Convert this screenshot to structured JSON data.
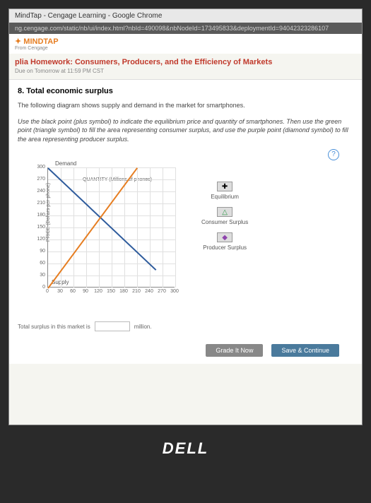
{
  "window": {
    "title": "MindTap - Cengage Learning - Google Chrome"
  },
  "url": "ng.cengage.com/static/nb/ui/index.html?nbId=490098&nbNodeId=173495833&deploymentId=94042323286107",
  "brand": {
    "name": "MINDTAP",
    "sub": "From Cengage"
  },
  "homework": {
    "title": "plia Homework: Consumers, Producers, and the Efficiency of Markets",
    "due": "Due on Tomorrow at 11:59 PM CST"
  },
  "question": {
    "number": "8. Total economic surplus",
    "intro": "The following diagram shows supply and demand in the market for smartphones.",
    "instructions": "Use the black point (plus symbol) to indicate the equilibrium price and quantity of smartphones. Then use the green point (triangle symbol) to fill the area representing consumer surplus, and use the purple point (diamond symbol) to fill the area representing producer surplus."
  },
  "chart": {
    "demand_label": "Demand",
    "supply_label": "Supply",
    "ylabel": "PRICE (Dollars per phone)",
    "xlabel": "QUANTITY (Millions of phones)",
    "yticks": [
      "0",
      "30",
      "60",
      "90",
      "120",
      "150",
      "180",
      "210",
      "240",
      "270",
      "300"
    ],
    "xticks": [
      "0",
      "30",
      "60",
      "90",
      "120",
      "150",
      "180",
      "210",
      "240",
      "270",
      "300"
    ],
    "demand_color": "#2e5b9c",
    "supply_color": "#e67e22",
    "grid_color": "#e0e0e0"
  },
  "legend": {
    "equilibrium": "Equilibrium",
    "consumer": "Consumer Surplus",
    "producer": "Producer Surplus",
    "eq_sym": "✚",
    "cs_sym": "△",
    "ps_sym": "◆",
    "cs_color": "#2e9c4a",
    "ps_color": "#8e44ad"
  },
  "answer": {
    "prompt_pre": "Total surplus in this market is",
    "value": "",
    "unit": "million."
  },
  "buttons": {
    "grade": "Grade It Now",
    "save": "Save & Continue"
  },
  "laptop": "DELL"
}
